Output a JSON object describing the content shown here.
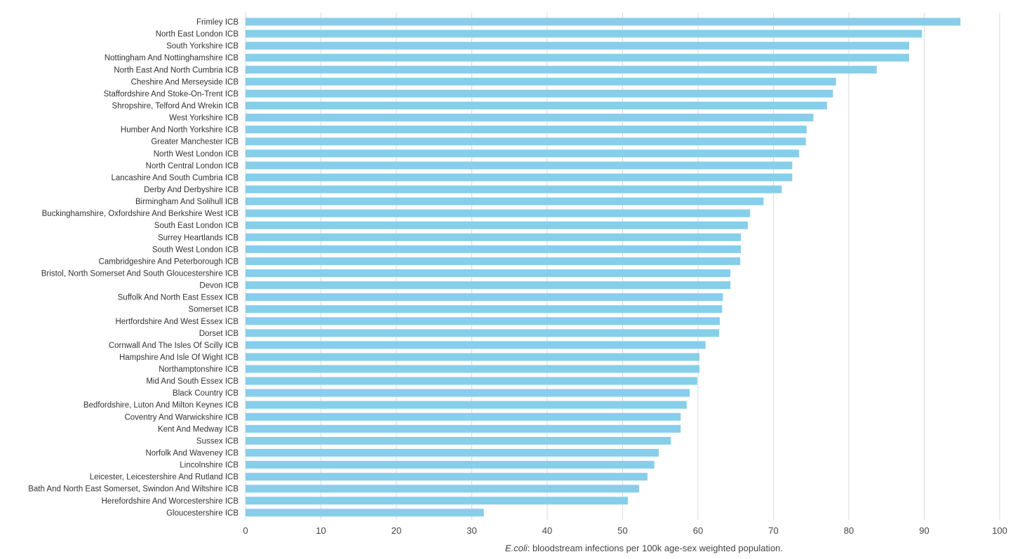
{
  "chart_data": {
    "type": "bar",
    "orientation": "horizontal",
    "xlabel_italic": "E.coli",
    "xlabel_rest": ": bloodstream infections per 100k age-sex weighted  population.",
    "xlim": [
      0,
      100
    ],
    "xticks": [
      "0",
      "10",
      "20",
      "30",
      "40",
      "50",
      "60",
      "70",
      "80",
      "90",
      "100"
    ],
    "grid": "vertical",
    "bar_color": "#87ceeb",
    "categories": [
      "Frimley ICB",
      "North East London ICB",
      "South Yorkshire ICB",
      "Nottingham And Nottinghamshire ICB",
      "North East And North Cumbria ICB",
      "Cheshire And Merseyside ICB",
      "Staffordshire And Stoke-On-Trent ICB",
      "Shropshire, Telford And Wrekin ICB",
      "West Yorkshire ICB",
      "Humber And North Yorkshire ICB",
      "Greater Manchester ICB",
      "North West London ICB",
      "North Central London ICB",
      "Lancashire And South Cumbria ICB",
      "Derby And Derbyshire ICB",
      "Birmingham And Solihull ICB",
      "Buckinghamshire, Oxfordshire And Berkshire West ICB",
      "South East London ICB",
      "Surrey Heartlands ICB",
      "South West London ICB",
      "Cambridgeshire And Peterborough ICB",
      "Bristol, North Somerset And South Gloucestershire ICB",
      "Devon ICB",
      "Suffolk And North East Essex ICB",
      "Somerset ICB",
      "Hertfordshire And West Essex ICB",
      "Dorset ICB",
      "Cornwall And The Isles Of Scilly ICB",
      "Hampshire And Isle Of Wight ICB",
      "Northamptonshire ICB",
      "Mid And South Essex ICB",
      "Black Country ICB",
      "Bedfordshire, Luton And Milton Keynes ICB",
      "Coventry And Warwickshire ICB",
      "Kent And Medway ICB",
      "Sussex ICB",
      "Norfolk And Waveney ICB",
      "Lincolnshire ICB",
      "Leicester, Leicestershire And Rutland ICB",
      "Bath And North East Somerset, Swindon And Wiltshire ICB",
      "Herefordshire And Worcestershire ICB",
      "Gloucestershire ICB"
    ],
    "values": [
      94.8,
      89.7,
      88.0,
      88.0,
      83.7,
      78.3,
      77.9,
      77.1,
      75.3,
      74.4,
      74.3,
      73.4,
      72.5,
      72.5,
      71.1,
      68.7,
      66.9,
      66.6,
      65.7,
      65.7,
      65.6,
      64.3,
      64.3,
      63.3,
      63.2,
      62.9,
      62.8,
      61.0,
      60.2,
      60.2,
      59.9,
      58.9,
      58.5,
      57.7,
      57.7,
      56.4,
      54.8,
      54.2,
      53.3,
      52.2,
      50.7,
      31.6
    ]
  }
}
